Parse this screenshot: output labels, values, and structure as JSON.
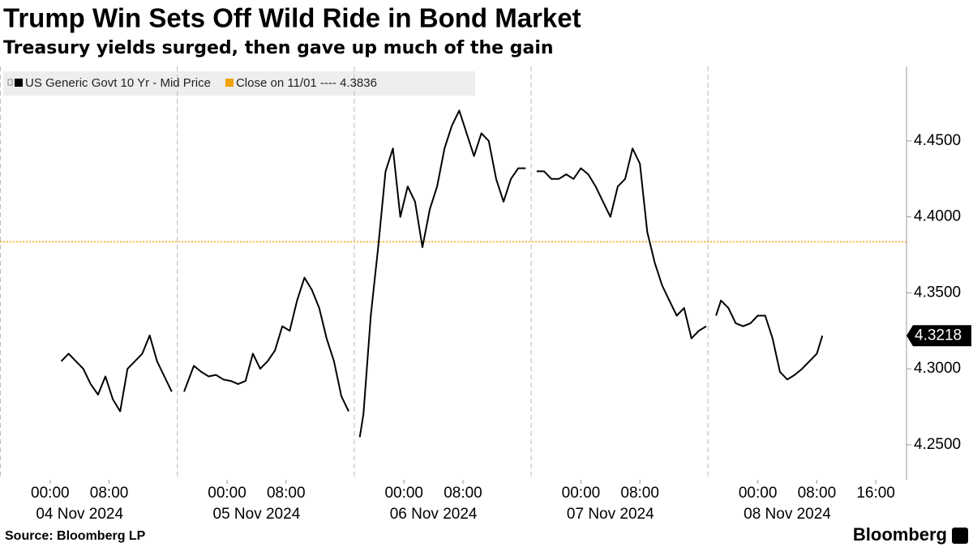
{
  "chart_data": {
    "type": "line",
    "title": "Trump Win Sets Off Wild Ride in Bond Market",
    "subtitle": "Treasury yields surged, then gave up much of the gain",
    "source": "Source: Bloomberg LP",
    "brand": "Bloomberg",
    "x": [
      "2024-11-04T01:30",
      "2024-11-04T02:30",
      "2024-11-04T03:30",
      "2024-11-04T04:30",
      "2024-11-04T05:30",
      "2024-11-04T06:30",
      "2024-11-04T07:30",
      "2024-11-04T08:30",
      "2024-11-04T09:30",
      "2024-11-04T10:30",
      "2024-11-04T11:30",
      "2024-11-04T12:30",
      "2024-11-04T13:30",
      "2024-11-04T14:30",
      "2024-11-04T15:30",
      "2024-11-04T16:30",
      "2024-11-04T17:20",
      "2024-11-04T18:10",
      "2024-11-04T19:30",
      "2024-11-04T20:30",
      "2024-11-04T21:30",
      "2024-11-04T22:30",
      "2024-11-04T23:30",
      "2024-11-05T00:30",
      "2024-11-05T01:30",
      "2024-11-05T02:30",
      "2024-11-05T03:30",
      "2024-11-05T04:30",
      "2024-11-05T05:30",
      "2024-11-05T06:30",
      "2024-11-05T07:30",
      "2024-11-05T08:30",
      "2024-11-05T09:30",
      "2024-11-05T10:30",
      "2024-11-05T11:30",
      "2024-11-05T12:30",
      "2024-11-05T13:30",
      "2024-11-05T14:30",
      "2024-11-05T15:30",
      "2024-11-05T16:30",
      "2024-11-05T17:20",
      "2024-11-05T18:00",
      "2024-11-05T18:30",
      "2024-11-05T19:30",
      "2024-11-05T20:30",
      "2024-11-05T21:30",
      "2024-11-05T22:30",
      "2024-11-05T23:30",
      "2024-11-06T00:30",
      "2024-11-06T01:30",
      "2024-11-06T02:30",
      "2024-11-06T03:30",
      "2024-11-06T04:30",
      "2024-11-06T05:30",
      "2024-11-06T06:30",
      "2024-11-06T07:30",
      "2024-11-06T08:30",
      "2024-11-06T09:30",
      "2024-11-06T10:30",
      "2024-11-06T11:30",
      "2024-11-06T12:30",
      "2024-11-06T13:30",
      "2024-11-06T14:30",
      "2024-11-06T15:30",
      "2024-11-06T16:30",
      "2024-11-06T17:20",
      "2024-11-06T18:00",
      "2024-11-06T19:00",
      "2024-11-06T20:00",
      "2024-11-06T21:00",
      "2024-11-06T22:00",
      "2024-11-06T23:00",
      "2024-11-07T00:00",
      "2024-11-07T01:00",
      "2024-11-07T02:00",
      "2024-11-07T03:00",
      "2024-11-07T04:00",
      "2024-11-07T05:00",
      "2024-11-07T06:00",
      "2024-11-07T07:00",
      "2024-11-07T08:00",
      "2024-11-07T09:00",
      "2024-11-07T10:00",
      "2024-11-07T11:00",
      "2024-11-07T12:00",
      "2024-11-07T13:00",
      "2024-11-07T14:00",
      "2024-11-07T15:00",
      "2024-11-07T16:00",
      "2024-11-07T17:00",
      "2024-11-07T17:20",
      "2024-11-07T18:20",
      "2024-11-07T19:00",
      "2024-11-07T20:00",
      "2024-11-07T21:00",
      "2024-11-07T22:00",
      "2024-11-07T23:00",
      "2024-11-08T00:00",
      "2024-11-08T01:00",
      "2024-11-08T02:00",
      "2024-11-08T03:00",
      "2024-11-08T04:00",
      "2024-11-08T05:00",
      "2024-11-08T06:00",
      "2024-11-08T07:00",
      "2024-11-08T08:00",
      "2024-11-08T08:45"
    ],
    "series": [
      {
        "name": "US Generic Govt 10 Yr - Mid Price",
        "color": "#000000",
        "values": [
          4.305,
          4.31,
          4.305,
          4.3,
          4.29,
          4.283,
          4.295,
          4.28,
          4.272,
          4.3,
          4.305,
          4.31,
          4.322,
          4.305,
          4.295,
          4.285,
          null,
          4.285,
          4.302,
          4.298,
          4.295,
          4.296,
          4.293,
          4.292,
          4.29,
          4.292,
          4.31,
          4.3,
          4.305,
          4.312,
          4.328,
          4.325,
          4.345,
          4.36,
          4.352,
          4.34,
          4.32,
          4.305,
          4.282,
          4.272,
          null,
          4.255,
          4.27,
          4.335,
          4.38,
          4.43,
          4.445,
          4.4,
          4.42,
          4.41,
          4.38,
          4.405,
          4.42,
          4.445,
          4.46,
          4.47,
          4.455,
          4.44,
          4.455,
          4.45,
          4.425,
          4.41,
          4.425,
          4.432,
          4.432,
          null,
          4.43,
          4.43,
          4.425,
          4.425,
          4.428,
          4.425,
          4.432,
          4.428,
          4.42,
          4.41,
          4.4,
          4.42,
          4.425,
          4.445,
          4.435,
          4.39,
          4.37,
          4.355,
          4.345,
          4.335,
          4.34,
          4.32,
          4.325,
          4.328,
          null,
          4.335,
          4.345,
          4.34,
          4.33,
          4.328,
          4.33,
          4.335,
          4.335,
          4.32,
          4.298,
          4.293,
          4.296,
          4.3,
          4.305,
          4.31,
          4.3218
        ]
      }
    ],
    "reference_lines": [
      {
        "name": "Close on 11/01 ---- 4.3836",
        "value": 4.3836,
        "color": "#f0a30a"
      }
    ],
    "session_breaks": [
      "2024-11-03T17:15",
      "2024-11-04T17:15",
      "2024-11-05T17:15",
      "2024-11-06T17:15",
      "2024-11-07T17:15"
    ],
    "xlim": [
      "2024-11-03T17:12",
      "2024-11-08T20:10"
    ],
    "xticks": [
      {
        "value": "2024-11-04T00:00",
        "label": "00:00"
      },
      {
        "value": "2024-11-04T08:00",
        "label": "08:00"
      },
      {
        "value": "2024-11-05T00:00",
        "label": "00:00"
      },
      {
        "value": "2024-11-05T08:00",
        "label": "08:00"
      },
      {
        "value": "2024-11-06T00:00",
        "label": "00:00"
      },
      {
        "value": "2024-11-06T08:00",
        "label": "08:00"
      },
      {
        "value": "2024-11-07T00:00",
        "label": "00:00"
      },
      {
        "value": "2024-11-07T08:00",
        "label": "08:00"
      },
      {
        "value": "2024-11-08T00:00",
        "label": "00:00"
      },
      {
        "value": "2024-11-08T08:00",
        "label": "08:00"
      },
      {
        "value": "2024-11-08T16:00",
        "label": "16:00"
      }
    ],
    "date_labels": [
      {
        "value": "2024-11-04T04:00",
        "label": "04 Nov 2024"
      },
      {
        "value": "2024-11-05T04:00",
        "label": "05 Nov 2024"
      },
      {
        "value": "2024-11-06T04:00",
        "label": "06 Nov 2024"
      },
      {
        "value": "2024-11-07T04:00",
        "label": "07 Nov 2024"
      },
      {
        "value": "2024-11-08T04:00",
        "label": "08 Nov 2024"
      }
    ],
    "ylim": [
      4.227,
      4.499
    ],
    "yticks": [
      {
        "value": 4.25,
        "label": "4.2500"
      },
      {
        "value": 4.3,
        "label": "4.3000"
      },
      {
        "value": 4.35,
        "label": "4.3500"
      },
      {
        "value": 4.4,
        "label": "4.4000"
      },
      {
        "value": 4.45,
        "label": "4.4500"
      }
    ]
  }
}
